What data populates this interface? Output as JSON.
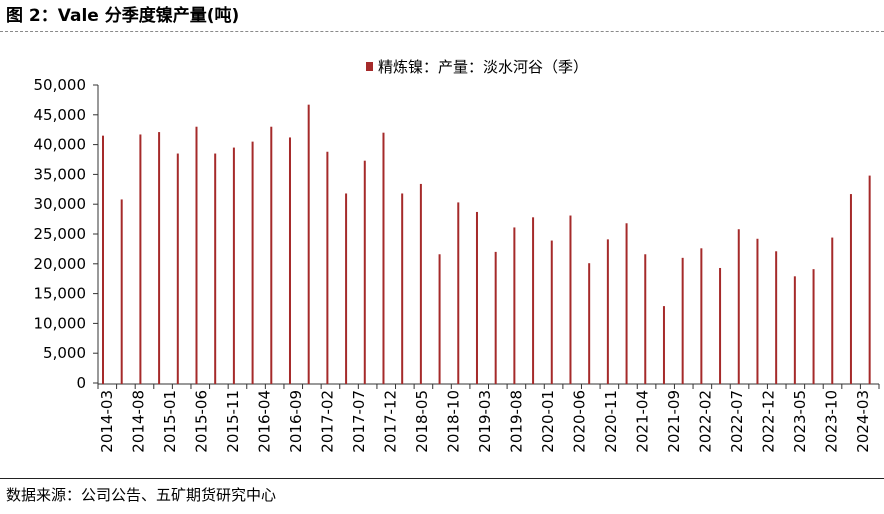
{
  "figure": {
    "title": "图 2：Vale 分季度镍产量(吨)",
    "source": "数据来源：公司公告、五矿期货研究中心"
  },
  "colors": {
    "bar": "#a52a2a",
    "axis": "#333333",
    "text": "#000000"
  },
  "chart_data": {
    "type": "bar",
    "title": "",
    "xlabel": "",
    "ylabel": "",
    "ylim": [
      0,
      50000
    ],
    "yticks": [
      0,
      5000,
      10000,
      15000,
      20000,
      25000,
      30000,
      35000,
      40000,
      45000,
      50000
    ],
    "ytick_labels": [
      "0",
      "5,000",
      "10,000",
      "15,000",
      "20,000",
      "25,000",
      "30,000",
      "35,000",
      "40,000",
      "45,000",
      "50,000"
    ],
    "grid": false,
    "legend_position": "top-center",
    "x_tick_labels": [
      "2014-03",
      "2014-08",
      "2015-01",
      "2015-06",
      "2015-11",
      "2016-04",
      "2016-09",
      "2017-02",
      "2017-07",
      "2017-12",
      "2018-05",
      "2018-10",
      "2019-03",
      "2019-08",
      "2020-01",
      "2020-06",
      "2020-11",
      "2021-04",
      "2021-09",
      "2022-02",
      "2022-07",
      "2022-12",
      "2023-05",
      "2023-10",
      "2024-03"
    ],
    "categories": [
      "2014-03",
      "2014-06",
      "2014-09",
      "2014-12",
      "2015-03",
      "2015-06",
      "2015-09",
      "2015-12",
      "2016-03",
      "2016-06",
      "2016-09",
      "2016-12",
      "2017-03",
      "2017-06",
      "2017-09",
      "2017-12",
      "2018-03",
      "2018-06",
      "2018-09",
      "2018-12",
      "2019-03",
      "2019-06",
      "2019-09",
      "2019-12",
      "2020-03",
      "2020-06",
      "2020-09",
      "2020-12",
      "2021-03",
      "2021-06",
      "2021-09",
      "2021-12",
      "2022-03",
      "2022-06",
      "2022-09",
      "2022-12",
      "2023-03",
      "2023-06",
      "2023-09",
      "2023-12",
      "2024-03",
      "2024-06"
    ],
    "series": [
      {
        "name": "精炼镍：产量：淡水河谷（季）",
        "values": [
          41500,
          30800,
          41700,
          42100,
          38500,
          43000,
          38500,
          39500,
          40500,
          43000,
          41200,
          46700,
          38800,
          31800,
          37300,
          42000,
          31800,
          33400,
          21600,
          30300,
          28700,
          22000,
          26100,
          27800,
          23900,
          28100,
          20100,
          24100,
          26800,
          21600,
          12900,
          21000,
          22600,
          19300,
          25800,
          24200,
          22100,
          17900,
          19100,
          24400,
          31700,
          34800
        ]
      }
    ]
  }
}
